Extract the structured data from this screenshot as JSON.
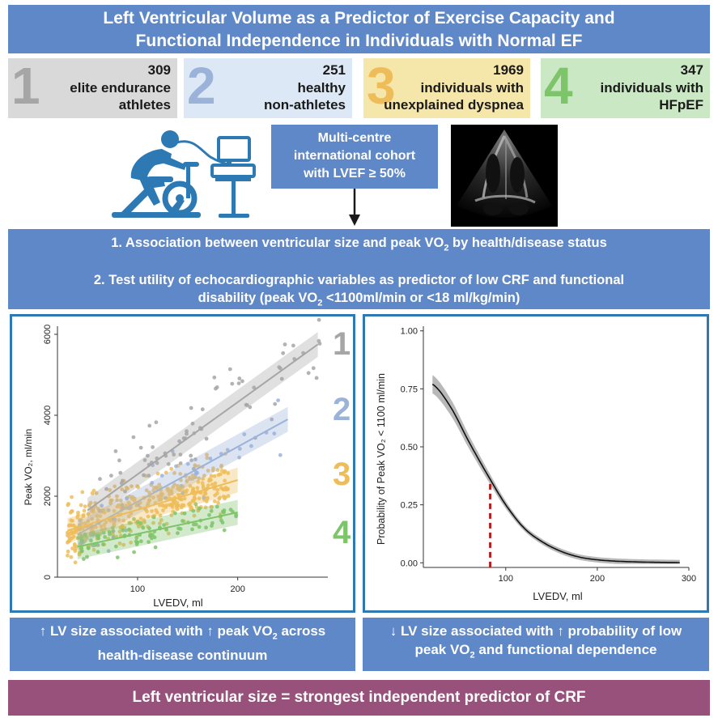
{
  "title": {
    "line1": "Left Ventricular Volume as a Predictor of Exercise Capacity and",
    "line2": "Functional Independence in Individuals with Normal EF"
  },
  "cohorts": [
    {
      "number": "1",
      "count": "309",
      "line1": "elite endurance",
      "line2": "athletes",
      "bg": "#d9d9d9",
      "num_color": "#a6a6a6"
    },
    {
      "number": "2",
      "count": "251",
      "line1": "healthy",
      "line2": "non-athletes",
      "bg": "#dce8f5",
      "num_color": "#9bb3d9"
    },
    {
      "number": "3",
      "count": "1969",
      "line1": "individuals with",
      "line2": "unexplained dyspnea",
      "bg": "#f5e6a9",
      "num_color": "#eebd5a"
    },
    {
      "number": "4",
      "count": "347",
      "line1": "individuals with",
      "line2": "HFpEF",
      "bg": "#cbe8c4",
      "num_color": "#7dc46a"
    }
  ],
  "cohort_box": {
    "line1": "Multi-centre",
    "line2": "international cohort",
    "line3": "with LVEF ≥ 50%"
  },
  "aims": {
    "aim1_pre": "1. Association between ventricular size and peak VO",
    "aim1_sub": "2",
    "aim1_post": " by health/disease status",
    "aim2_line1": "2. Test utility of echocardiographic variables as predictor of low CRF and functional",
    "aim2_pre": "disability (peak VO",
    "aim2_sub": "2",
    "aim2_post": " <1100ml/min or <18 ml/kg/min)"
  },
  "chart_data": [
    {
      "type": "scatter",
      "title": "",
      "xlabel": "LVEDV, ml",
      "ylabel": "Peak VO₂, ml/min",
      "xlim": [
        20,
        290
      ],
      "ylim": [
        0,
        6200
      ],
      "xticks": [
        "100",
        "200"
      ],
      "yticks": [
        "0",
        "2000",
        "4000",
        "6000"
      ],
      "series": [
        {
          "name": "1",
          "color": "#a6a6a6",
          "fit": {
            "x": [
              50,
              280
            ],
            "y": [
              1650,
              5750
            ]
          },
          "x_range": [
            60,
            285
          ],
          "y_mean_offset": 0
        },
        {
          "name": "2",
          "color": "#9bb3d9",
          "fit": {
            "x": [
              40,
              250
            ],
            "y": [
              1050,
              3900
            ]
          },
          "x_range": [
            40,
            250
          ],
          "y_mean_offset": 0
        },
        {
          "name": "3",
          "color": "#eebd5a",
          "fit": {
            "x": [
              30,
              200
            ],
            "y": [
              1150,
              2400
            ]
          },
          "x_range": [
            30,
            200
          ],
          "y_mean_offset": 0
        },
        {
          "name": "4",
          "color": "#7dc46a",
          "fit": {
            "x": [
              40,
              200
            ],
            "y": [
              750,
              1600
            ]
          },
          "x_range": [
            40,
            200
          ],
          "y_mean_offset": 0
        }
      ]
    },
    {
      "type": "line",
      "title": "",
      "xlabel": "LVEDV, ml",
      "ylabel": "Probability of Peak VO₂ < 1100 ml/min",
      "xlim": [
        10,
        300
      ],
      "ylim": [
        -0.02,
        1.02
      ],
      "xticks": [
        "100",
        "200",
        "300"
      ],
      "yticks": [
        "0.00",
        "0.25",
        "0.50",
        "0.75",
        "1.00"
      ],
      "x": [
        20,
        40,
        60,
        80,
        100,
        120,
        140,
        160,
        180,
        200,
        220,
        250,
        290
      ],
      "y": [
        0.77,
        0.67,
        0.52,
        0.38,
        0.25,
        0.15,
        0.09,
        0.05,
        0.025,
        0.013,
        0.007,
        0.003,
        0.001
      ],
      "cutoff": {
        "x": 83,
        "y": 0.34
      }
    }
  ],
  "left_labels": [
    "1",
    "2",
    "3",
    "4"
  ],
  "bottom_left": {
    "arrow": "↑",
    "text1": "LV size associated with ",
    "arrow2": "↑",
    "text2": " peak VO",
    "sub": "2",
    "text3": " across",
    "line2": "health-disease continuum"
  },
  "bottom_right": {
    "arrow": "↓",
    "text1": "LV size associated with ",
    "arrow2": "↑",
    "text2": " probability of low",
    "line2_pre": "peak VO",
    "sub": "2",
    "line2_post": " and functional dependence"
  },
  "conclusion": "Left ventricular size = strongest independent predictor of CRF",
  "colors": {
    "accent": "#5f88c8",
    "panel_border": "#2c79b4",
    "conclusion": "#97517b",
    "cutoff": "#b22222"
  }
}
